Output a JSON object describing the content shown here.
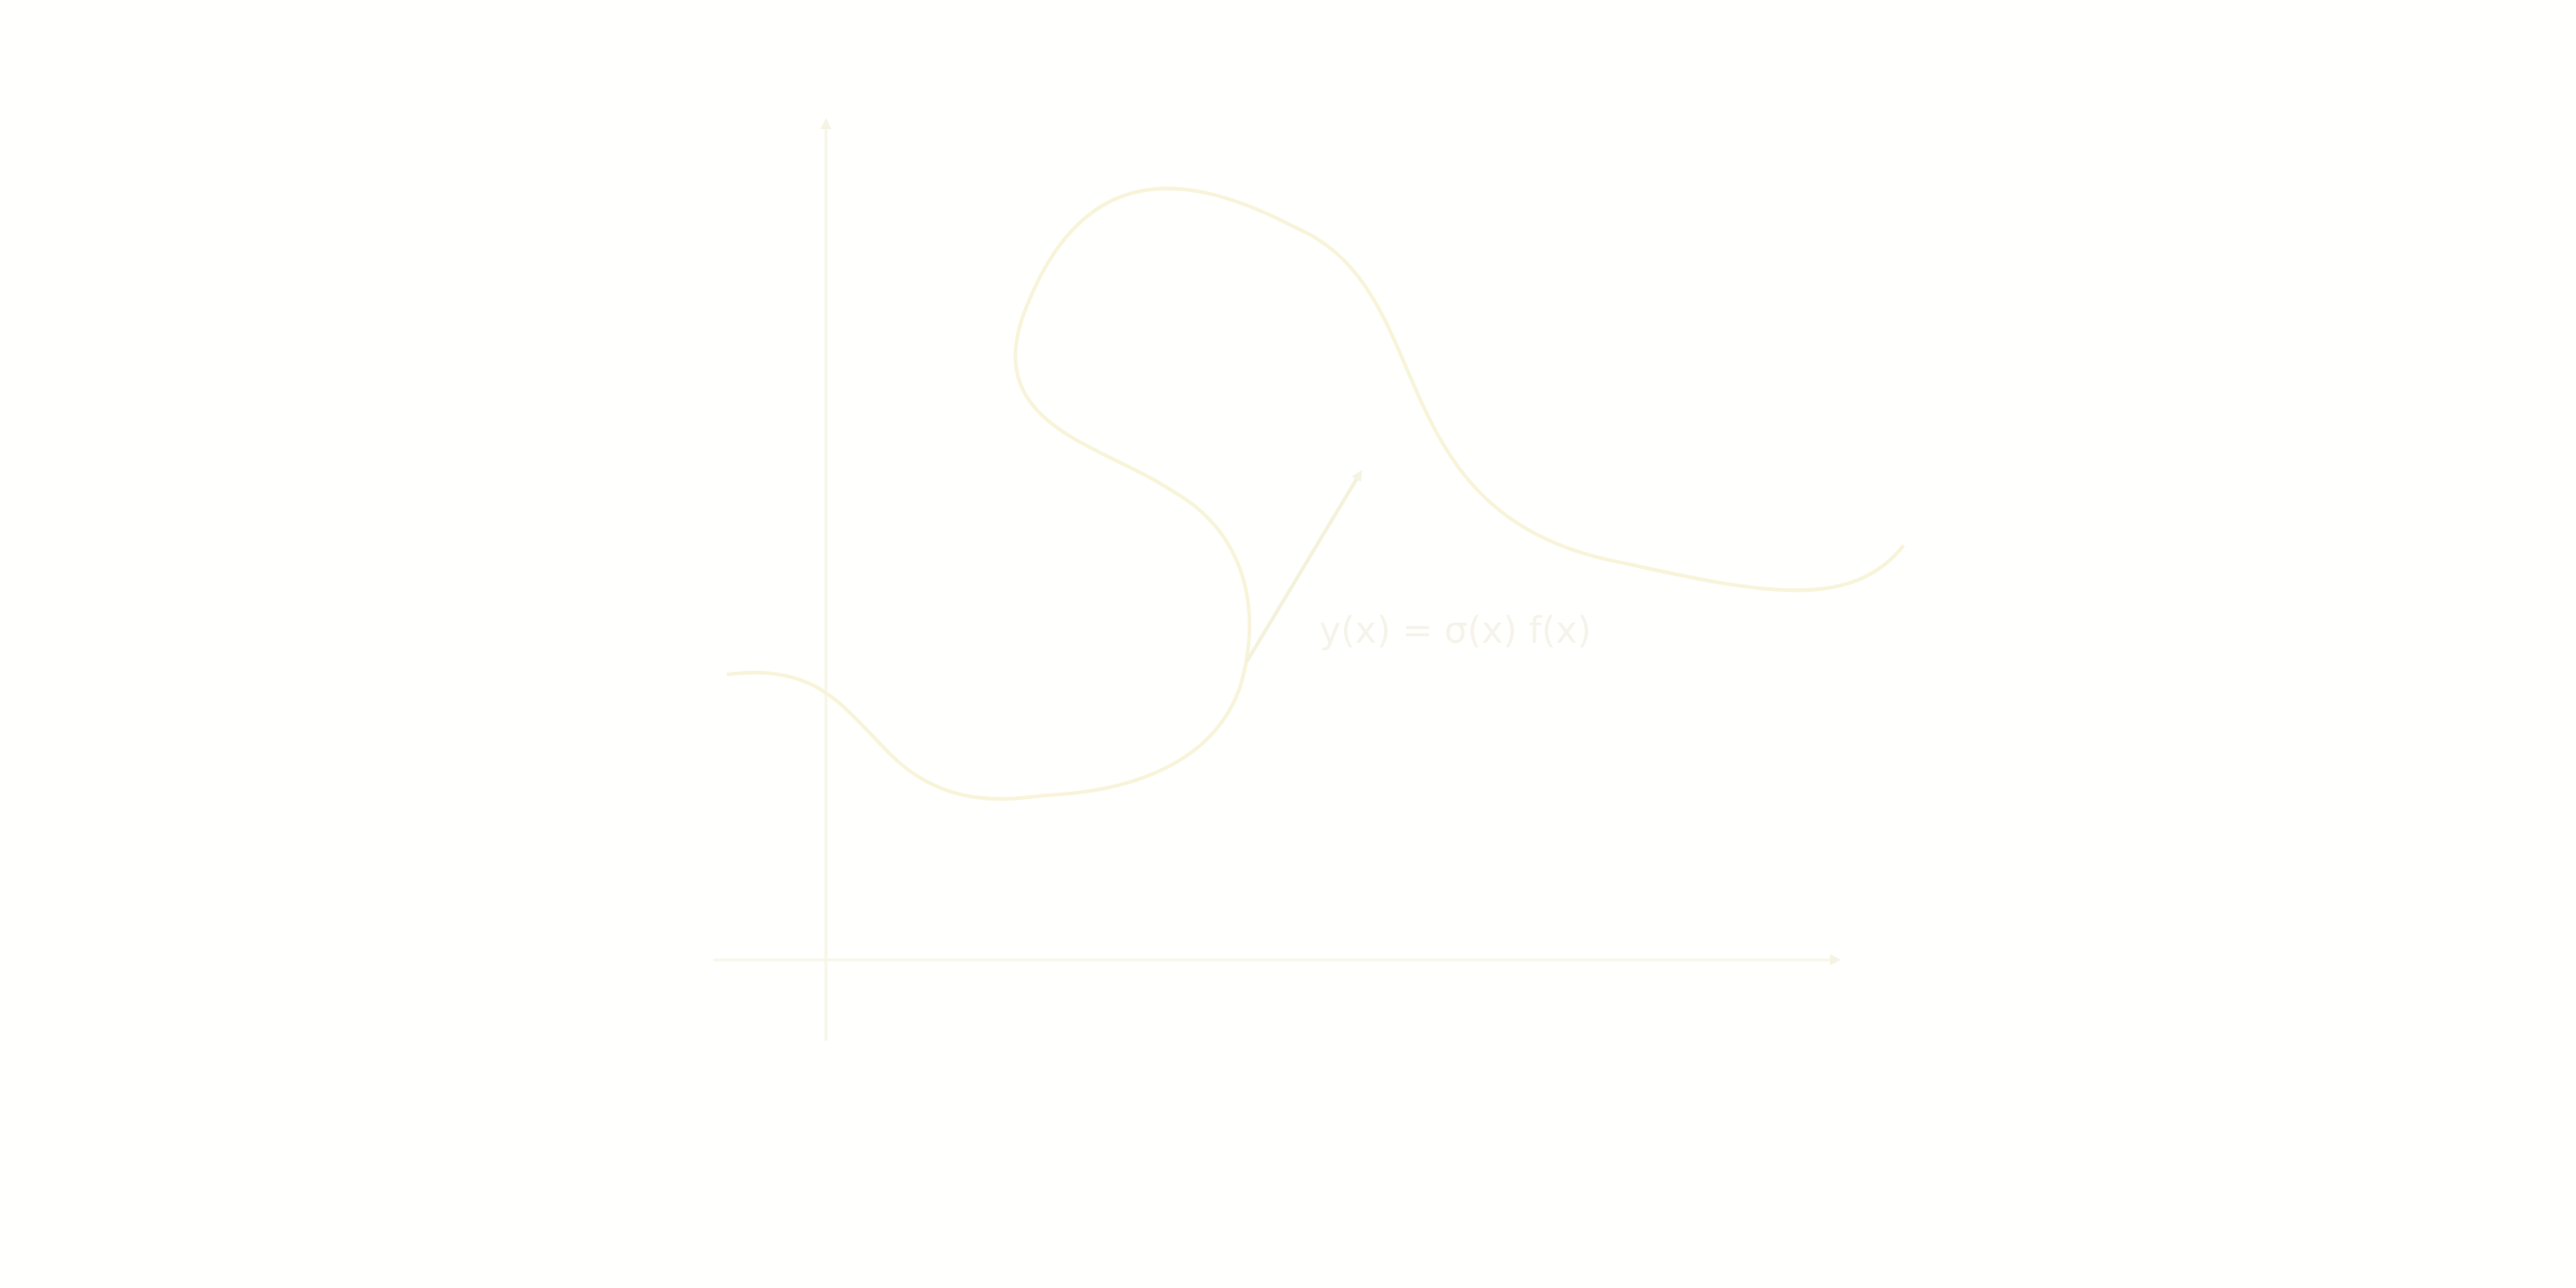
{
  "diagram": {
    "label": "y(x) = σ(x) f(x)",
    "colors": {
      "background": "#fffffd",
      "axis": "#f7f6e9",
      "curve": "#f8f4da",
      "label": "#f5f3ea"
    }
  }
}
